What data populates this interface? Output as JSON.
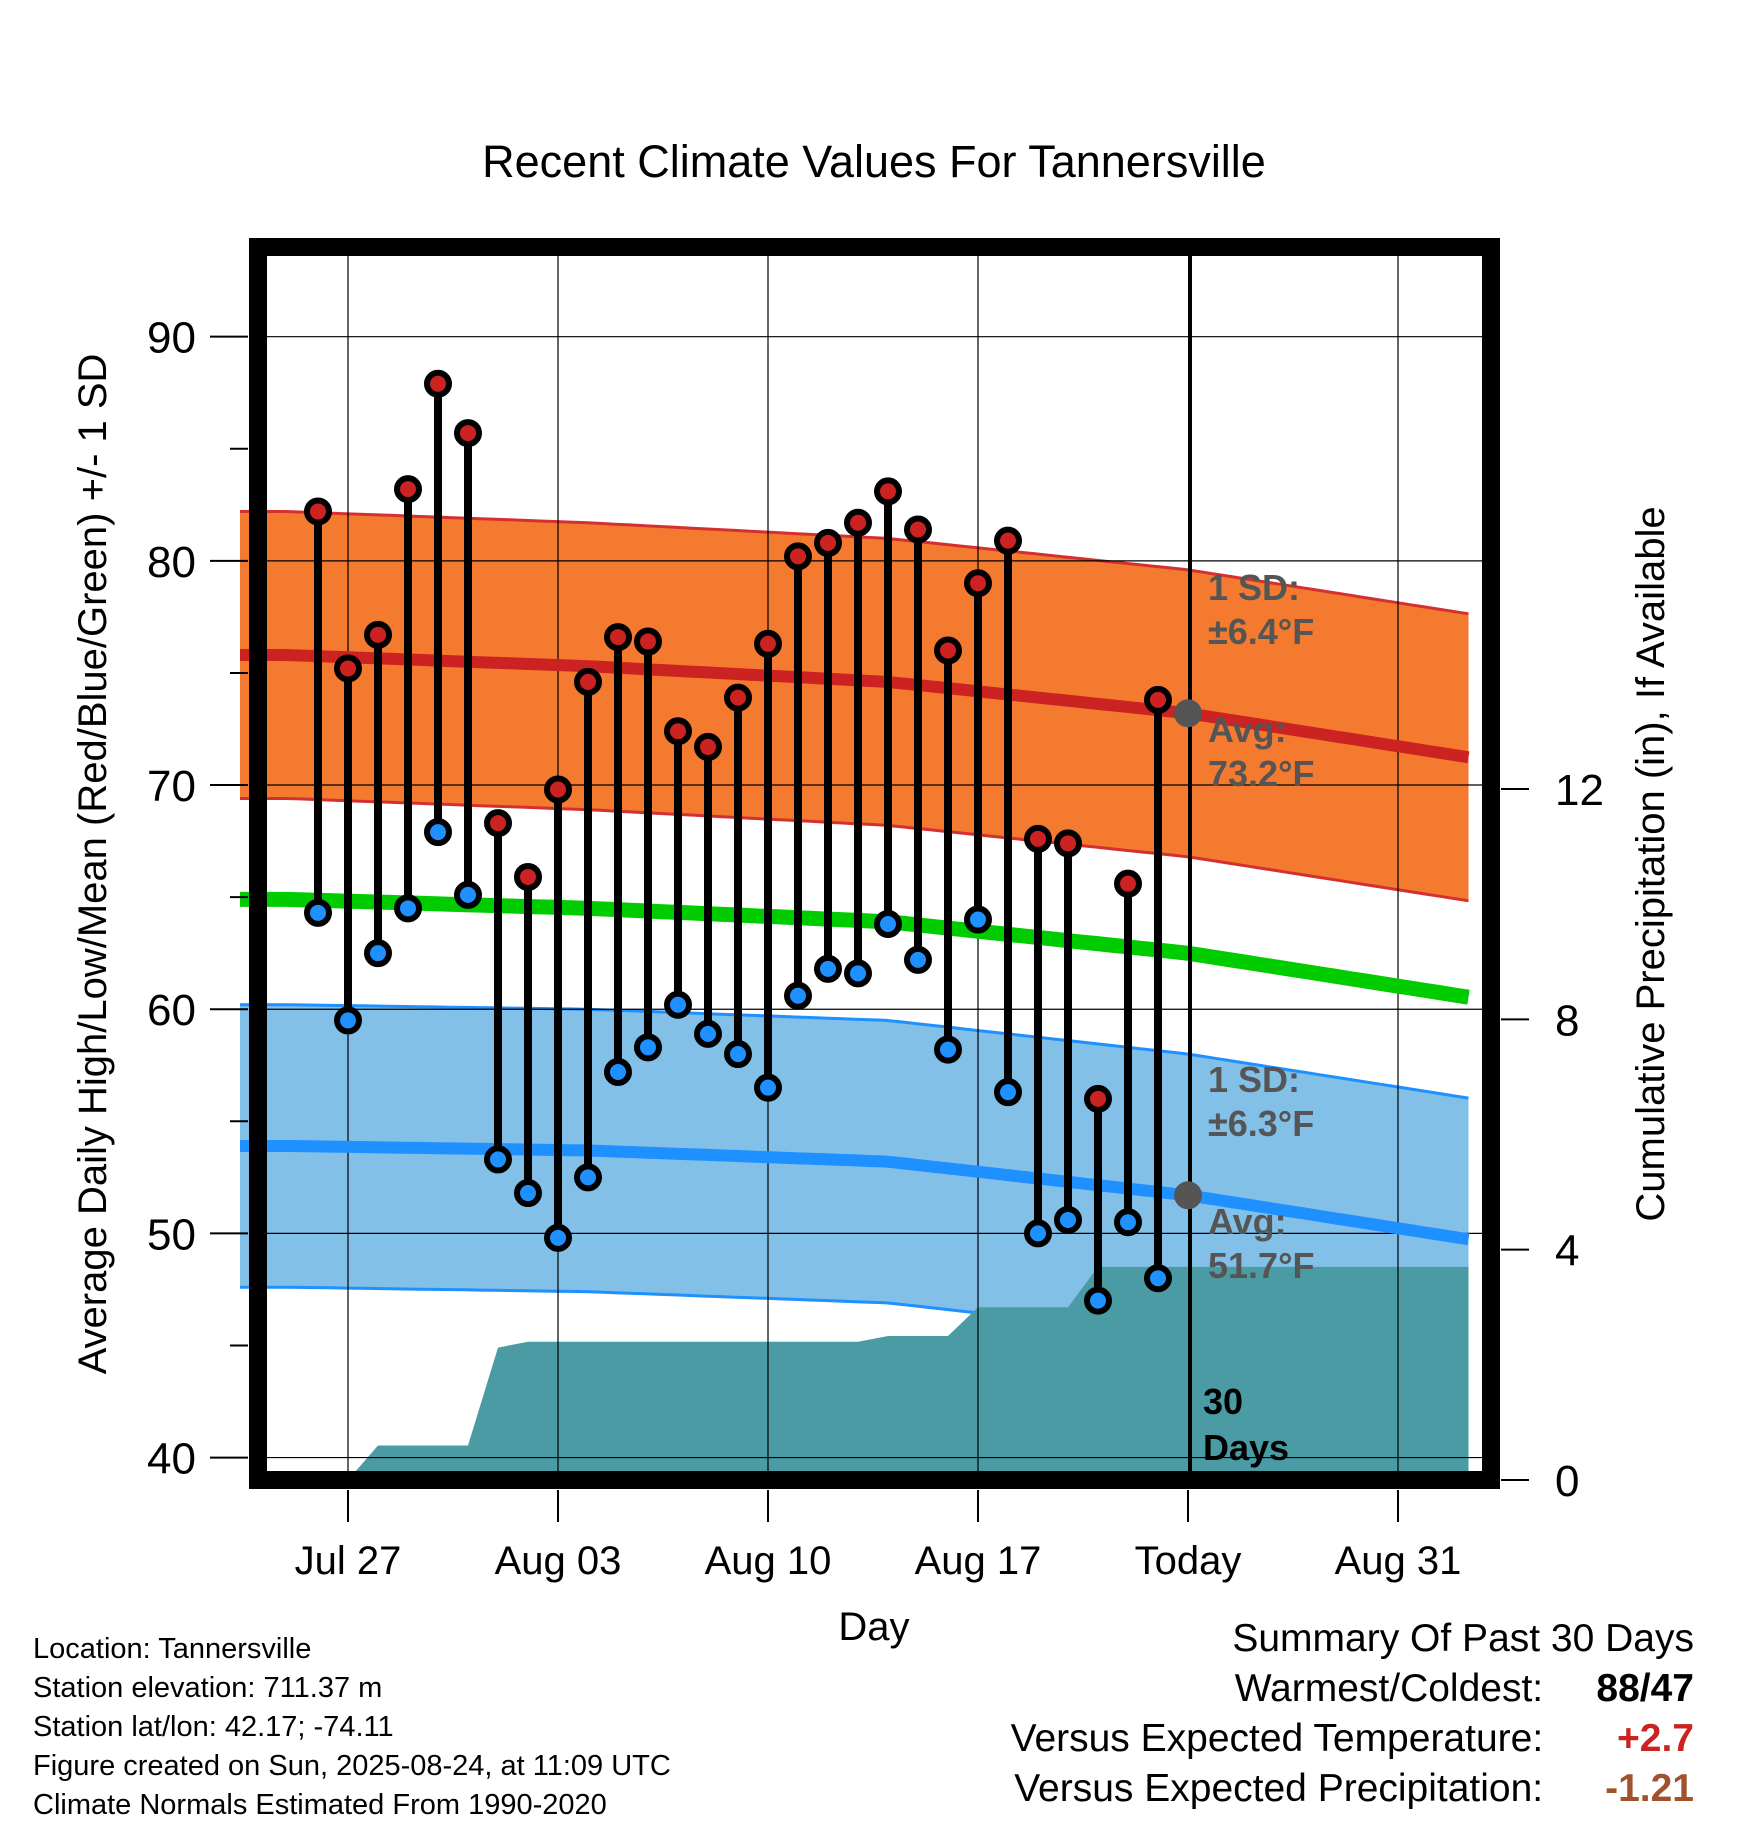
{
  "chart_data": {
    "type": "line",
    "title": "Recent Climate Values For Tannersville",
    "xlabel": "Day",
    "ylabel": "Average Daily High/Low/Mean (Red/Blue/Green) +/- 1 SD",
    "y2label": "Cumulative Precipitation (in), If Available",
    "ylim": [
      39,
      94
    ],
    "y2lim": [
      0,
      24
    ],
    "yticks": [
      "40",
      "50",
      "60",
      "70",
      "80",
      "90"
    ],
    "y2ticks": [
      "0",
      "4",
      "8",
      "12"
    ],
    "xtick_labels": [
      "Jul 27",
      "Aug 03",
      "Aug 10",
      "Aug 17",
      "Today",
      "Aug 31"
    ],
    "xtick_days": [
      2,
      9,
      16,
      23,
      30,
      37
    ],
    "grid": true,
    "today_day": 30,
    "x": [
      1,
      2,
      3,
      4,
      5,
      6,
      7,
      8,
      9,
      10,
      11,
      12,
      13,
      14,
      15,
      16,
      17,
      18,
      19,
      20,
      21,
      22,
      23,
      24,
      25,
      26,
      27,
      28,
      29
    ],
    "series": [
      {
        "name": "High",
        "color": "#cc2222",
        "values": [
          82.2,
          75.2,
          76.7,
          83.2,
          87.9,
          85.7,
          68.3,
          65.9,
          69.8,
          74.6,
          76.6,
          76.4,
          72.4,
          71.7,
          73.9,
          76.3,
          80.2,
          80.8,
          81.7,
          83.1,
          81.4,
          76.0,
          79.0,
          80.9,
          67.6,
          67.4,
          56.0,
          65.6,
          73.8
        ]
      },
      {
        "name": "Low",
        "color": "#1e90ff",
        "values": [
          64.3,
          59.5,
          62.5,
          64.5,
          67.9,
          65.1,
          53.3,
          51.8,
          49.8,
          52.5,
          57.2,
          58.3,
          60.2,
          58.9,
          58.0,
          56.5,
          60.6,
          61.8,
          61.6,
          63.8,
          62.2,
          58.2,
          64.0,
          56.3,
          50.0,
          50.6,
          47.0,
          50.5,
          48.0
        ]
      },
      {
        "name": "Normal High Avg",
        "color": "#cc2222",
        "x": [
          0,
          10,
          20,
          30,
          40
        ],
        "values": [
          75.8,
          75.3,
          74.6,
          73.2,
          71.1
        ]
      },
      {
        "name": "Normal Low Avg",
        "color": "#1e90ff",
        "x": [
          0,
          10,
          20,
          30,
          40
        ],
        "values": [
          53.9,
          53.7,
          53.2,
          51.7,
          49.6
        ]
      },
      {
        "name": "Normal Mean",
        "color": "#00cc00",
        "x": [
          0,
          10,
          20,
          30,
          40
        ],
        "values": [
          64.9,
          64.5,
          63.9,
          62.5,
          60.4
        ]
      },
      {
        "name": "Cumulative Precipitation",
        "color": "#4a9ba4",
        "axis": "y2",
        "x": [
          0,
          2,
          3,
          6,
          7,
          8,
          9,
          10,
          11,
          12,
          13,
          14,
          15,
          16,
          17,
          18,
          19,
          20,
          21,
          22,
          23,
          24,
          25,
          26,
          27,
          28,
          29,
          30,
          31,
          40
        ],
        "values": [
          0,
          0,
          0.6,
          0.6,
          2.3,
          2.4,
          2.4,
          2.4,
          2.4,
          2.4,
          2.4,
          2.4,
          2.4,
          2.4,
          2.4,
          2.4,
          2.4,
          2.5,
          2.5,
          2.5,
          3.0,
          3.0,
          3.0,
          3.0,
          3.7,
          3.7,
          3.7,
          3.7,
          3.7,
          3.7
        ]
      }
    ],
    "high_sd": 6.4,
    "low_sd": 6.3,
    "today_high_avg": 73.2,
    "today_low_avg": 51.7,
    "annotations": {
      "high_sd": [
        "1 SD:",
        "±6.4°F"
      ],
      "high_avg": [
        "Avg:",
        "73.2°F"
      ],
      "low_sd": [
        "1 SD:",
        "±6.3°F"
      ],
      "low_avg": [
        "Avg:",
        "51.7°F"
      ],
      "days": [
        "30",
        "Days"
      ]
    }
  },
  "info": {
    "location": "Location: Tannersville",
    "elevation": "Station elevation: 711.37 m",
    "latlon": "Station lat/lon: 42.17; -74.11",
    "created": "Figure created on Sun, 2025-08-24, at 11:09 UTC",
    "normals": "Climate Normals Estimated From 1990-2020"
  },
  "summary": {
    "title": "Summary Of Past 30 Days",
    "warm_cold_label": "Warmest/Coldest:",
    "warmest": "88",
    "coldest": "/47",
    "temp_label": "Versus Expected Temperature:",
    "temp_value": "+2.7",
    "temp_color": "#cc2222",
    "precip_label": "Versus Expected Precipitation:",
    "precip_value": "-1.21",
    "precip_color": "#a0522d"
  }
}
